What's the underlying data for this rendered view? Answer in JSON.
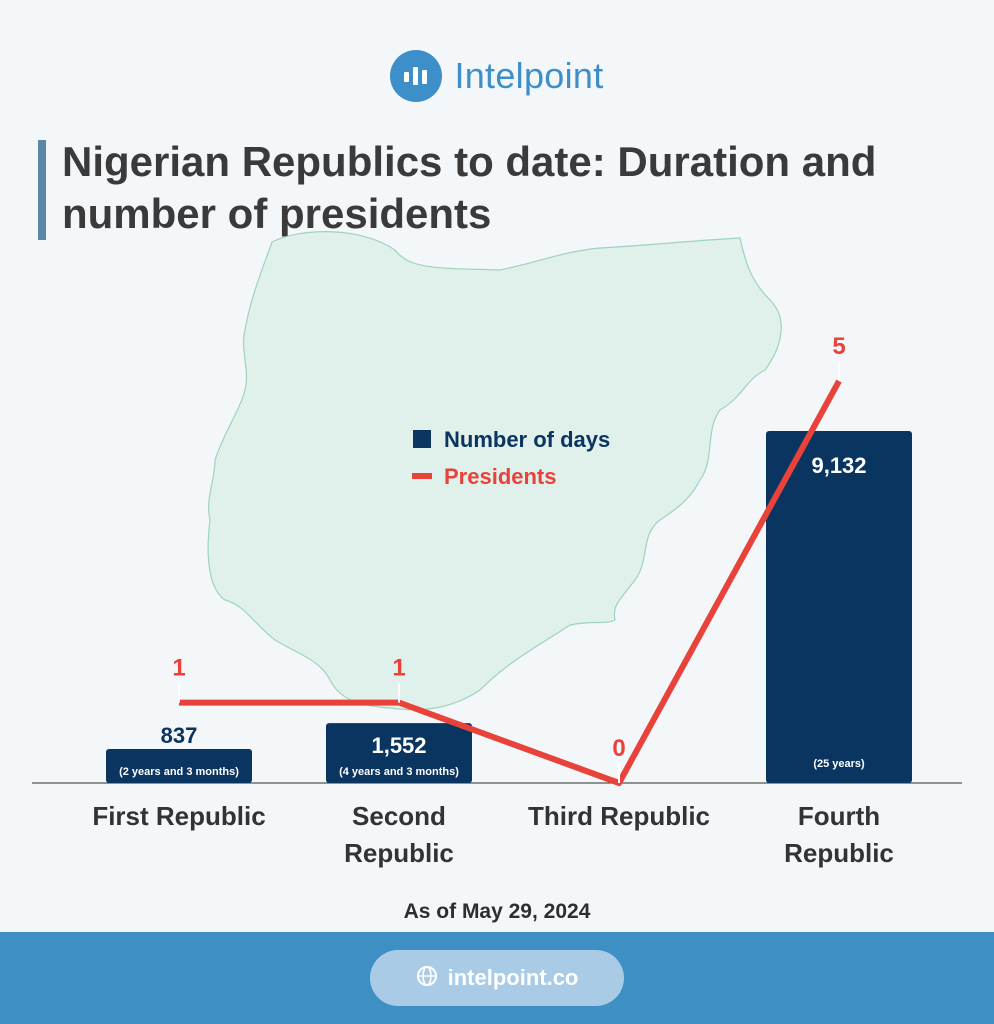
{
  "brand": {
    "name": "Intelpoint",
    "url": "intelpoint.co",
    "color": "#3d8fc9"
  },
  "title": "Nigerian Republics to date: Duration and number of presidents",
  "footnote": "As of May 29, 2024",
  "chart_data": {
    "type": "bar",
    "categories": [
      "First Republic",
      "Second Republic",
      "Third Republic",
      "Fourth Republic"
    ],
    "series": [
      {
        "name": "Number of days",
        "type": "bar",
        "color": "#0b3561",
        "values": [
          837,
          1552,
          0,
          9132
        ],
        "labels": [
          "837",
          "1,552",
          "",
          "9,132"
        ],
        "sublabels": [
          "(2 years and 3 months)",
          "(4 years and 3 months)",
          "",
          "(25 years)"
        ]
      },
      {
        "name": "Presidents",
        "type": "line",
        "color": "#e8423a",
        "values": [
          1,
          1,
          0,
          5
        ],
        "labels": [
          "1",
          "1",
          "0",
          "5"
        ]
      }
    ],
    "legend": "center",
    "grid": false,
    "background_icon": "nigeria-map"
  }
}
